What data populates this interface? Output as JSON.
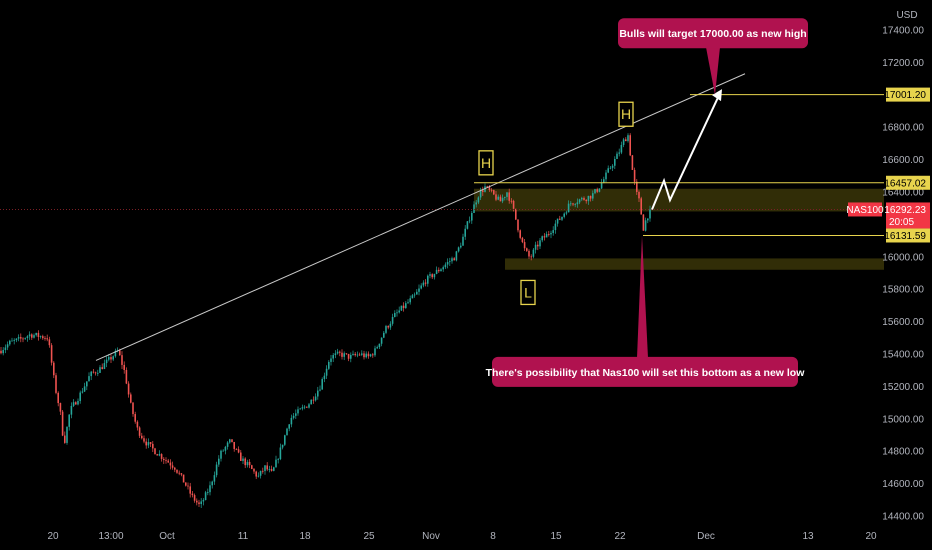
{
  "currency": "USD",
  "colors": {
    "background": "#000000",
    "up": "#26a69a",
    "down": "#ef5350",
    "level_line": "#e8d44d",
    "zone": "#3a3508",
    "callout": "#b0124f",
    "price_tag": "#f23645",
    "trendline": "#c8c8c8",
    "arrow": "#ffffff"
  },
  "chart_data": {
    "type": "candlestick",
    "symbol": "NAS100",
    "y_ticks": [
      17400,
      17200,
      17000,
      16800,
      16600,
      16400,
      16200,
      16000,
      15800,
      15600,
      15400,
      15200,
      15000,
      14800,
      14600,
      14400
    ],
    "y_tick_labels": [
      "17400.00",
      "17200.00",
      "16800.00",
      "16600.00",
      "16400.00",
      "16000.00",
      "15800.00",
      "15600.00",
      "15400.00",
      "15200.00",
      "15000.00",
      "14800.00",
      "14600.00",
      "14400.00"
    ],
    "ylim": [
      14380,
      17520
    ],
    "x_tick_labels": [
      "20",
      "13:00",
      "Oct",
      "11",
      "18",
      "25",
      "Nov",
      "8",
      "15",
      "22",
      "Dec",
      "13",
      "20"
    ],
    "price_path": [
      [
        0,
        15420
      ],
      [
        10,
        15470
      ],
      [
        20,
        15490
      ],
      [
        30,
        15520
      ],
      [
        40,
        15510
      ],
      [
        48,
        15500
      ],
      [
        55,
        15200
      ],
      [
        60,
        15050
      ],
      [
        64,
        14840
      ],
      [
        70,
        15050
      ],
      [
        80,
        15150
      ],
      [
        90,
        15270
      ],
      [
        100,
        15310
      ],
      [
        110,
        15370
      ],
      [
        118,
        15420
      ],
      [
        125,
        15280
      ],
      [
        130,
        15100
      ],
      [
        137,
        14940
      ],
      [
        145,
        14860
      ],
      [
        155,
        14800
      ],
      [
        165,
        14750
      ],
      [
        175,
        14700
      ],
      [
        185,
        14600
      ],
      [
        192,
        14520
      ],
      [
        200,
        14460
      ],
      [
        210,
        14580
      ],
      [
        220,
        14780
      ],
      [
        230,
        14860
      ],
      [
        240,
        14760
      ],
      [
        250,
        14700
      ],
      [
        258,
        14640
      ],
      [
        265,
        14700
      ],
      [
        272,
        14660
      ],
      [
        280,
        14800
      ],
      [
        290,
        15000
      ],
      [
        300,
        15050
      ],
      [
        310,
        15100
      ],
      [
        320,
        15200
      ],
      [
        330,
        15380
      ],
      [
        340,
        15400
      ],
      [
        350,
        15380
      ],
      [
        360,
        15400
      ],
      [
        368,
        15380
      ],
      [
        375,
        15420
      ],
      [
        385,
        15550
      ],
      [
        395,
        15640
      ],
      [
        405,
        15700
      ],
      [
        415,
        15760
      ],
      [
        425,
        15850
      ],
      [
        435,
        15900
      ],
      [
        445,
        15950
      ],
      [
        455,
        16000
      ],
      [
        462,
        16100
      ],
      [
        470,
        16250
      ],
      [
        478,
        16380
      ],
      [
        485,
        16430
      ],
      [
        492,
        16390
      ],
      [
        500,
        16340
      ],
      [
        507,
        16400
      ],
      [
        512,
        16320
      ],
      [
        518,
        16180
      ],
      [
        524,
        16050
      ],
      [
        530,
        15990
      ],
      [
        536,
        16060
      ],
      [
        542,
        16110
      ],
      [
        548,
        16140
      ],
      [
        555,
        16200
      ],
      [
        562,
        16250
      ],
      [
        570,
        16330
      ],
      [
        578,
        16350
      ],
      [
        585,
        16360
      ],
      [
        592,
        16380
      ],
      [
        598,
        16420
      ],
      [
        604,
        16480
      ],
      [
        610,
        16550
      ],
      [
        616,
        16610
      ],
      [
        620,
        16660
      ],
      [
        624,
        16720
      ],
      [
        628,
        16750
      ],
      [
        632,
        16550
      ],
      [
        636,
        16400
      ],
      [
        640,
        16330
      ],
      [
        643,
        16170
      ],
      [
        647,
        16250
      ],
      [
        652,
        16290
      ]
    ],
    "levels": [
      {
        "price": 17001.2,
        "label": "17001.20"
      },
      {
        "price": 16457.02,
        "label": "16457.02"
      },
      {
        "price": 16131.59,
        "label": "16131.59"
      }
    ],
    "zones": [
      {
        "from": 16280,
        "to": 16420
      },
      {
        "from": 15920,
        "to": 15990
      }
    ],
    "current_price": {
      "value": 16292.23,
      "label": "16292.23",
      "timer": "20:05",
      "symbol": "NAS100"
    },
    "trendline": {
      "start": [
        96,
        15360
      ],
      "end": [
        745,
        17130
      ]
    },
    "projection_path": [
      [
        652,
        16292
      ],
      [
        664,
        16470
      ],
      [
        670,
        16350
      ],
      [
        720,
        17010
      ]
    ],
    "pattern_labels": [
      {
        "text": "H",
        "x": 486,
        "price": 16580
      },
      {
        "text": "H",
        "x": 626,
        "price": 16880
      },
      {
        "text": "L",
        "x": 528,
        "price": 15780
      }
    ],
    "callouts": [
      {
        "text": "Bulls will target 17000.00 as new high",
        "price": 17380,
        "pointer_x": 714,
        "pointer_to_price": 17000
      },
      {
        "text": "There's possibility that Nas100 will set this bottom as a new low",
        "price": 15290,
        "pointer_x": 642,
        "pointer_to_price": 16131.59
      }
    ]
  }
}
